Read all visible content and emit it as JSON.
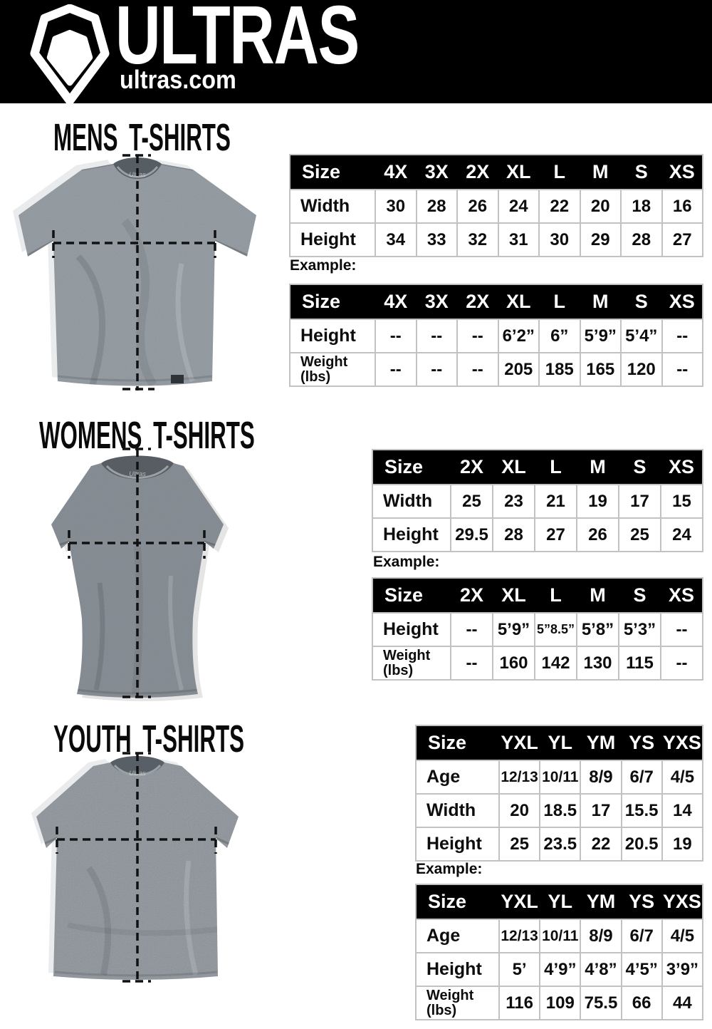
{
  "header": {
    "brand": "ULTRAS",
    "site": "ultras.com",
    "logo_icon": "pentagon-shield",
    "bg_color": "#000000"
  },
  "example_label": "Example:",
  "shirt_colors": {
    "mens": "#8f979e",
    "womens": "#81888f",
    "youth": "#8b9299"
  },
  "sections": {
    "mens": {
      "title": "MENS T-SHIRTS",
      "example_label": "Example:",
      "size_table": {
        "columns": [
          "Size",
          "4X",
          "3X",
          "2X",
          "XL",
          "L",
          "M",
          "S",
          "XS"
        ],
        "rows": [
          {
            "label": "Width",
            "values": [
              "30",
              "28",
              "26",
              "24",
              "22",
              "20",
              "18",
              "16"
            ]
          },
          {
            "label": "Height",
            "values": [
              "34",
              "33",
              "32",
              "31",
              "30",
              "29",
              "28",
              "27"
            ]
          }
        ]
      },
      "example_table": {
        "columns": [
          "Size",
          "4X",
          "3X",
          "2X",
          "XL",
          "L",
          "M",
          "S",
          "XS"
        ],
        "rows": [
          {
            "label": "Height",
            "values": [
              "--",
              "--",
              "--",
              "6’2”",
              "6”",
              "5’9”",
              "5’4”",
              "--"
            ]
          },
          {
            "label": "Weight\n(lbs)",
            "values": [
              "--",
              "--",
              "--",
              "205",
              "185",
              "165",
              "120",
              "--"
            ]
          }
        ]
      }
    },
    "womens": {
      "title": "WOMENS T-SHIRTS",
      "example_label": "Example:",
      "size_table": {
        "columns": [
          "Size",
          "2X",
          "XL",
          "L",
          "M",
          "S",
          "XS"
        ],
        "rows": [
          {
            "label": "Width",
            "values": [
              "25",
              "23",
              "21",
              "19",
              "17",
              "15"
            ]
          },
          {
            "label": "Height",
            "values": [
              "29.5",
              "28",
              "27",
              "26",
              "25",
              "24"
            ]
          }
        ]
      },
      "example_table": {
        "columns": [
          "Size",
          "2X",
          "XL",
          "L",
          "M",
          "S",
          "XS"
        ],
        "rows": [
          {
            "label": "Height",
            "values": [
              "--",
              "5’9”",
              "5”8.5”",
              "5’8”",
              "5’3”",
              "--"
            ]
          },
          {
            "label": "Weight\n(lbs)",
            "values": [
              "--",
              "160",
              "142",
              "130",
              "115",
              "--"
            ]
          }
        ]
      }
    },
    "youth": {
      "title": "YOUTH T-SHIRTS",
      "example_label": "Example:",
      "size_table": {
        "columns": [
          "Size",
          "YXL",
          "YL",
          "YM",
          "YS",
          "YXS"
        ],
        "rows": [
          {
            "label": "Age",
            "values": [
              "12/13",
              "10/11",
              "8/9",
              "6/7",
              "4/5"
            ]
          },
          {
            "label": "Width",
            "values": [
              "20",
              "18.5",
              "17",
              "15.5",
              "14"
            ]
          },
          {
            "label": "Height",
            "values": [
              "25",
              "23.5",
              "22",
              "20.5",
              "19"
            ]
          }
        ]
      },
      "example_table": {
        "columns": [
          "Size",
          "YXL",
          "YL",
          "YM",
          "YS",
          "YXS"
        ],
        "rows": [
          {
            "label": "Age",
            "values": [
              "12/13",
              "10/11",
              "8/9",
              "6/7",
              "4/5"
            ]
          },
          {
            "label": "Height",
            "values": [
              "5’",
              "4’9”",
              "4’8”",
              "4’5”",
              "3’9”"
            ]
          },
          {
            "label": "Weight\n(lbs)",
            "values": [
              "116",
              "109",
              "75.5",
              "66",
              "44"
            ]
          }
        ]
      }
    }
  }
}
